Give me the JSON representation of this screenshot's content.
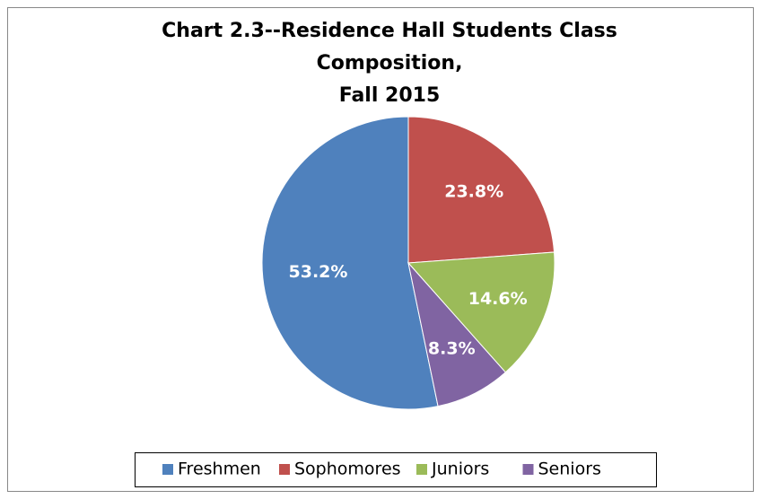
{
  "chart_data": {
    "type": "pie",
    "title": [
      "Chart 2.3--Residence Hall Students Class",
      "Composition,",
      "Fall 2015"
    ],
    "categories": [
      "Freshmen",
      "Sophomores",
      "Juniors",
      "Seniors"
    ],
    "values": [
      53.2,
      23.8,
      14.6,
      8.3
    ],
    "value_labels": [
      "53.2%",
      "23.8%",
      "14.6%",
      "8.3%"
    ],
    "colors": [
      "#4f81bd",
      "#c0504d",
      "#9bbb59",
      "#8064a2"
    ],
    "legend": "bottom"
  }
}
